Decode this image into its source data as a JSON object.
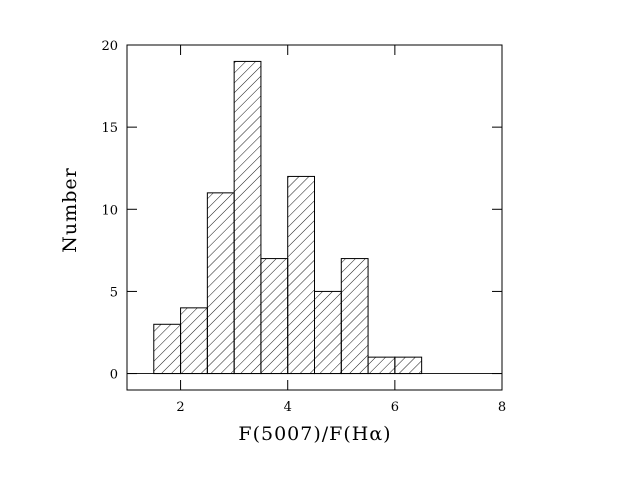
{
  "chart_data": {
    "type": "histogram",
    "x_label": "F(5007)/F(Hα)",
    "y_label": "Number",
    "bins": [
      1.5,
      2,
      2.5,
      3,
      3.5,
      4,
      4.5,
      5,
      5.5,
      6,
      6.5
    ],
    "values": [
      3,
      4,
      11,
      19,
      7,
      12,
      5,
      7,
      1,
      1
    ],
    "color": "#000000",
    "xlim": [
      1,
      8
    ],
    "xticks": [
      2,
      4,
      6,
      8
    ],
    "ylim": [
      -1,
      20
    ],
    "yticks": [
      0,
      5,
      10,
      15,
      20
    ]
  }
}
